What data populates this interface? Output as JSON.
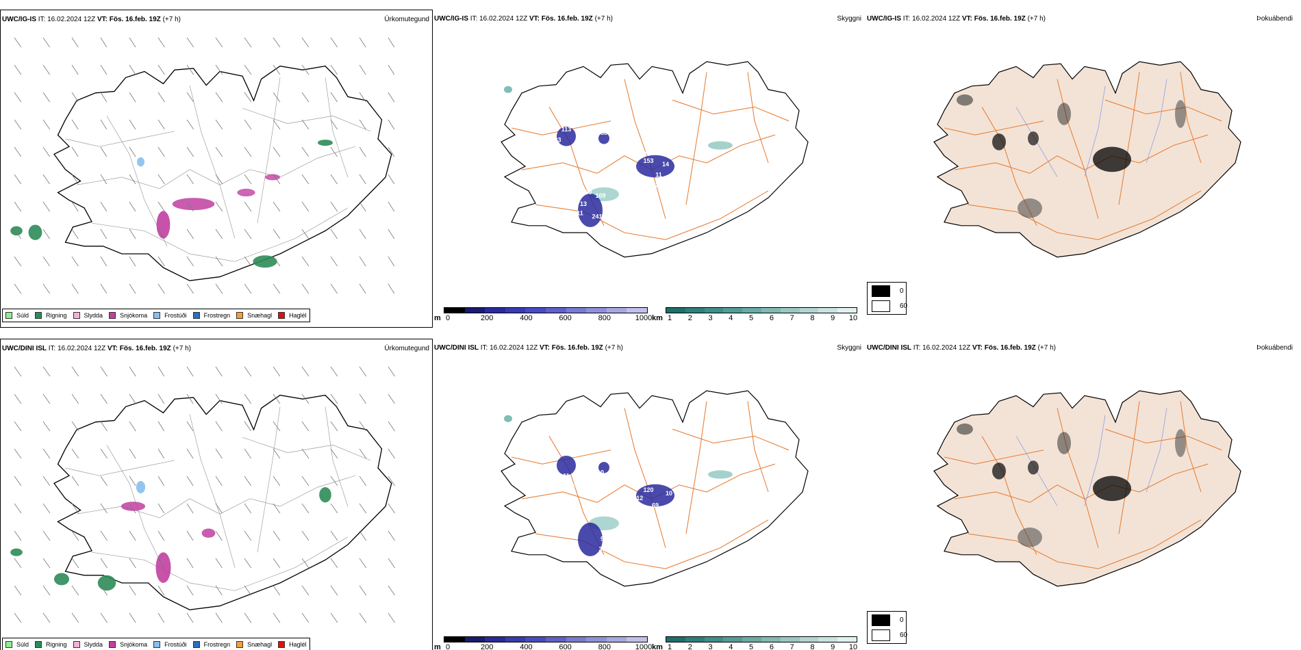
{
  "rows": [
    {
      "model": "UWC/IG-IS",
      "it_label": "IT:",
      "it_value": "16.02.2024 12Z",
      "vt_label": "VT:",
      "vt_value": "Fös. 16.feb. 19Z",
      "lead": "(+7 h)",
      "ceiling_labels": [
        "113",
        "103",
        "88",
        "128",
        "153",
        "14",
        "13",
        "11",
        "72",
        "160",
        "109",
        "13",
        "11",
        "241"
      ]
    },
    {
      "model": "UWC/DINI ISL",
      "it_label": "IT:",
      "it_value": "16.02.2024 12Z",
      "vt_label": "VT:",
      "vt_value": "Fös. 16.feb. 19Z",
      "lead": "(+7 h)",
      "ceiling_labels": [
        "11",
        "154",
        "10",
        "120",
        "112",
        "69",
        "10",
        "84",
        "96",
        "304",
        "24",
        "241"
      ]
    }
  ],
  "panel_names": {
    "precip": "Úrkomutegund",
    "ceiling": "Skyggni",
    "fog": "Þokuábendi"
  },
  "precip_legend": [
    {
      "label": "Súld",
      "color": "#90ee90"
    },
    {
      "label": "Rigning",
      "color": "#2e8b57"
    },
    {
      "label": "Slydda",
      "color": "#f4b0d8"
    },
    {
      "label": "Snjókoma",
      "color": "#c040a0"
    },
    {
      "label": "Frostúði",
      "color": "#87bfef"
    },
    {
      "label": "Frostregn",
      "color": "#2a6fc0"
    },
    {
      "label": "Snæhagl",
      "color": "#f5a030"
    },
    {
      "label": "Haglél",
      "color": "#e01010"
    }
  ],
  "ceiling_bar": {
    "unit": "m",
    "labels": [
      "0",
      "200",
      "400",
      "600",
      "800",
      "1000"
    ],
    "colors": [
      "#000000",
      "#1a1a6e",
      "#2a2a9a",
      "#3a3ab0",
      "#4a4ac0",
      "#6060c8",
      "#7a7ad0",
      "#9090d8",
      "#a8a8e0",
      "#c0c0ea"
    ]
  },
  "visibility_bar": {
    "unit": "km",
    "labels": [
      "1",
      "2",
      "3",
      "4",
      "5",
      "6",
      "7",
      "8",
      "9",
      "10"
    ],
    "colors": [
      "#1f6f6a",
      "#2e8079",
      "#3e8f88",
      "#549d96",
      "#6aaba5",
      "#82b9b3",
      "#9ac7c2",
      "#b2d5d1",
      "#cae3e0",
      "#e2f1ef"
    ]
  },
  "fog_legend": [
    {
      "label": "0",
      "color": "#000000"
    },
    {
      "label": "60",
      "color": "#ffffff"
    }
  ],
  "colors": {
    "land_fill": "#f3e3d6",
    "road": "#e8813a",
    "river": "#8e9ee8",
    "outline": "#000000",
    "ceiling_cloud": "#2a2a9e",
    "visibility_cloud": "#4aa39a",
    "rain": "#2e8b57",
    "snow": "#c040a0",
    "frost_drizzle": "#87bfef"
  }
}
